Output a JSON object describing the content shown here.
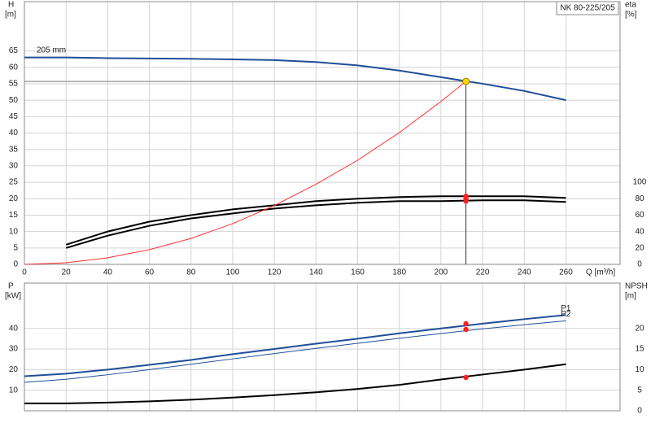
{
  "chart_data": [
    {
      "type": "line",
      "title": "NK 80-225/205",
      "ylabel": "H",
      "ylabel_unit": "[m]",
      "y2label": "eta",
      "y2label_unit": "[%]",
      "xlabel": "Q [m³/h]",
      "x": [
        0,
        20,
        40,
        60,
        80,
        100,
        120,
        140,
        160,
        180,
        200,
        220,
        240,
        260
      ],
      "xlim": [
        0,
        286
      ],
      "xticks": [
        0,
        20,
        40,
        60,
        80,
        100,
        120,
        140,
        160,
        180,
        200,
        220,
        240,
        260
      ],
      "ylim": [
        0,
        80
      ],
      "yticks": [
        0,
        5,
        10,
        15,
        20,
        25,
        30,
        35,
        40,
        45,
        50,
        55,
        60,
        65
      ],
      "y2lim": [
        0,
        320
      ],
      "y2ticks": [
        0,
        20,
        40,
        60,
        80,
        100
      ],
      "grid": true,
      "label_position": "start",
      "xtick_labels": true,
      "series": [
        {
          "name": "205 mm",
          "color": "#1f4e99",
          "width": 2,
          "values": [
            63,
            63,
            62.8,
            62.7,
            62.6,
            62.4,
            62.2,
            61.6,
            60.6,
            59,
            57,
            55,
            52.8,
            50
          ]
        },
        {
          "color": "#000000",
          "width": 2,
          "axis": "y2",
          "values": [
            null,
            24,
            40,
            52,
            60,
            67,
            72,
            77,
            80,
            82,
            83,
            83,
            83,
            81
          ]
        },
        {
          "color": "#000000",
          "width": 2,
          "axis": "y2",
          "values": [
            null,
            20,
            35,
            47,
            56,
            62,
            68,
            72,
            75,
            77,
            77,
            78,
            78,
            76
          ]
        },
        {
          "color": "#ff3030",
          "width": 1,
          "x": [
            0,
            20,
            40,
            60,
            80,
            100,
            120,
            140,
            160,
            180,
            200,
            212
          ],
          "values": [
            0,
            0.5,
            2,
            4.5,
            7.9,
            12.4,
            17.9,
            24.4,
            31.7,
            40.1,
            49.6,
            55.7
          ]
        }
      ],
      "markers": [
        {
          "x": 212,
          "y": 55.7,
          "color": "#ffd700",
          "guides": true
        },
        {
          "x": 212,
          "y": 83,
          "color": "#ff2020",
          "axis": "y2"
        },
        {
          "x": 212,
          "y": 80,
          "color": "#ff2020",
          "axis": "y2"
        },
        {
          "x": 212,
          "y": 77,
          "color": "#ff2020",
          "axis": "y2"
        }
      ]
    },
    {
      "type": "line",
      "ylabel": "P",
      "ylabel_unit": "[kW]",
      "y2label": "NPSH",
      "y2label_unit": "[m]",
      "x": [
        0,
        20,
        40,
        60,
        80,
        100,
        120,
        140,
        160,
        180,
        200,
        220,
        240,
        260
      ],
      "xlim": [
        0,
        286
      ],
      "xticks": [
        0,
        20,
        40,
        60,
        80,
        100,
        120,
        140,
        160,
        180,
        200,
        220,
        240,
        260
      ],
      "ylim": [
        0,
        62
      ],
      "yticks": [
        10,
        20,
        30,
        40
      ],
      "y2lim": [
        0,
        31
      ],
      "y2ticks": [
        0,
        5,
        10,
        15,
        20
      ],
      "grid": true,
      "label_position": "end",
      "xtick_labels": false,
      "series": [
        {
          "name": "P1",
          "color": "#1f4e99",
          "width": 2,
          "values": [
            16.8,
            18,
            20,
            22.3,
            24.7,
            27.5,
            30,
            32.6,
            35,
            37.6,
            40,
            42.3,
            44.5,
            46.5
          ]
        },
        {
          "name": "P2",
          "color": "#1f4e99",
          "width": 1,
          "values": [
            13.8,
            15.3,
            17.5,
            20,
            22.6,
            25.2,
            27.8,
            30.3,
            32.8,
            35.2,
            37.5,
            39.8,
            41.8,
            43.7
          ]
        },
        {
          "color": "#000000",
          "width": 2,
          "axis": "y2",
          "values": [
            1.8,
            1.8,
            2,
            2.3,
            2.7,
            3.2,
            3.8,
            4.5,
            5.3,
            6.3,
            7.6,
            8.8,
            10,
            11.3
          ]
        }
      ],
      "markers": [
        {
          "x": 212,
          "y": 42.3,
          "color": "#ff2020"
        },
        {
          "x": 212,
          "y": 39.5,
          "color": "#ff2020"
        },
        {
          "x": 212,
          "y": 8.1,
          "color": "#ff2020",
          "axis": "y2"
        }
      ]
    }
  ]
}
